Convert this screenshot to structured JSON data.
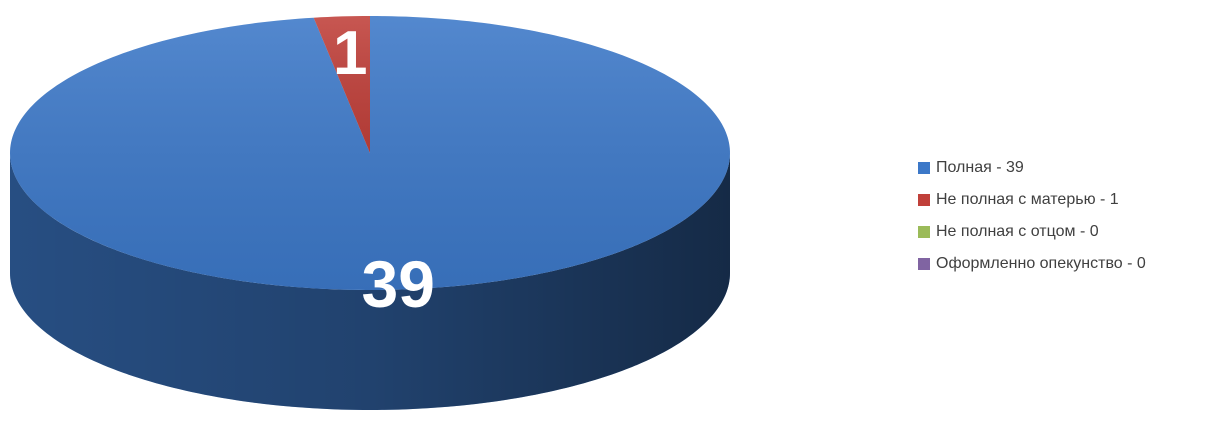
{
  "chart_data": {
    "type": "pie3d",
    "categories": [
      "Полная - 39",
      "Не полная с матерью - 1",
      "Не полная с отцом - 0",
      "Оформленно опекунство - 0"
    ],
    "values": [
      39,
      1,
      0,
      0
    ],
    "colors": [
      "#3c78c8",
      "#c0403a",
      "#9bbb59",
      "#8064a2"
    ],
    "legend": "right"
  }
}
